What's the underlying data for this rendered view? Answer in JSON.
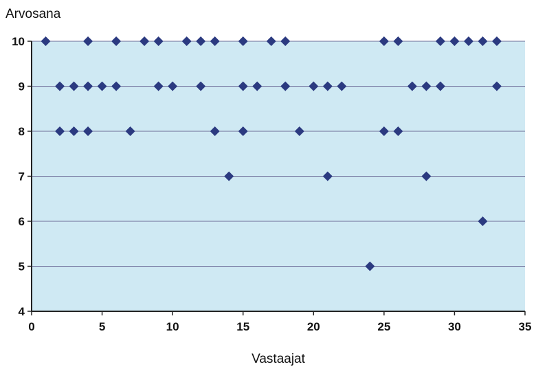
{
  "chart_data": {
    "type": "scatter",
    "title": "",
    "xlabel": "Vastaajat",
    "ylabel": "Arvosana",
    "xlim": [
      0,
      35
    ],
    "ylim": [
      4,
      10
    ],
    "x_ticks": [
      0,
      5,
      10,
      15,
      20,
      25,
      30,
      35
    ],
    "y_ticks": [
      4,
      5,
      6,
      7,
      8,
      9,
      10
    ],
    "grid": "horizontal",
    "legend": "none",
    "colors": {
      "plot_background": "#cfe9f3",
      "marker": "#2b3a80",
      "grid": "#6f6f9a",
      "axis": "#222222"
    },
    "points": [
      {
        "x": 1,
        "y": 10
      },
      {
        "x": 2,
        "y": 9
      },
      {
        "x": 2,
        "y": 8
      },
      {
        "x": 3,
        "y": 9
      },
      {
        "x": 3,
        "y": 8
      },
      {
        "x": 4,
        "y": 10
      },
      {
        "x": 4,
        "y": 9
      },
      {
        "x": 4,
        "y": 8
      },
      {
        "x": 5,
        "y": 9
      },
      {
        "x": 6,
        "y": 10
      },
      {
        "x": 6,
        "y": 9
      },
      {
        "x": 7,
        "y": 8
      },
      {
        "x": 8,
        "y": 10
      },
      {
        "x": 9,
        "y": 10
      },
      {
        "x": 9,
        "y": 9
      },
      {
        "x": 10,
        "y": 9
      },
      {
        "x": 11,
        "y": 10
      },
      {
        "x": 12,
        "y": 10
      },
      {
        "x": 12,
        "y": 9
      },
      {
        "x": 13,
        "y": 10
      },
      {
        "x": 13,
        "y": 8
      },
      {
        "x": 14,
        "y": 7
      },
      {
        "x": 15,
        "y": 10
      },
      {
        "x": 15,
        "y": 9
      },
      {
        "x": 15,
        "y": 8
      },
      {
        "x": 16,
        "y": 9
      },
      {
        "x": 17,
        "y": 10
      },
      {
        "x": 18,
        "y": 10
      },
      {
        "x": 18,
        "y": 9
      },
      {
        "x": 19,
        "y": 8
      },
      {
        "x": 20,
        "y": 9
      },
      {
        "x": 21,
        "y": 9
      },
      {
        "x": 21,
        "y": 7
      },
      {
        "x": 22,
        "y": 9
      },
      {
        "x": 24,
        "y": 5
      },
      {
        "x": 25,
        "y": 10
      },
      {
        "x": 25,
        "y": 8
      },
      {
        "x": 26,
        "y": 10
      },
      {
        "x": 26,
        "y": 8
      },
      {
        "x": 27,
        "y": 9
      },
      {
        "x": 28,
        "y": 9
      },
      {
        "x": 28,
        "y": 7
      },
      {
        "x": 29,
        "y": 10
      },
      {
        "x": 29,
        "y": 9
      },
      {
        "x": 30,
        "y": 10
      },
      {
        "x": 31,
        "y": 10
      },
      {
        "x": 32,
        "y": 10
      },
      {
        "x": 32,
        "y": 6
      },
      {
        "x": 33,
        "y": 10
      },
      {
        "x": 33,
        "y": 9
      }
    ]
  }
}
